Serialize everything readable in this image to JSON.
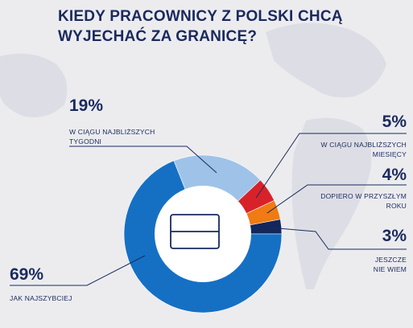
{
  "chart_data": {
    "type": "pie",
    "donut": true,
    "title_lines": [
      "KIEDY PRACOWNICY Z POLSKI CHCĄ",
      "WYJECHAĆ ZA GRANICĘ?"
    ],
    "slices": [
      {
        "value": 69,
        "label_pct": "69%",
        "label_lines": [
          "JAK NAJSZYBCIEJ"
        ],
        "color": "#1570c4",
        "key": "jak-najszybciej"
      },
      {
        "value": 19,
        "label_pct": "19%",
        "label_lines": [
          "W CIĄGU NAJBLIŻSZYCH",
          "TYGODNI"
        ],
        "color": "#9fc3e8",
        "key": "tygodni"
      },
      {
        "value": 5,
        "label_pct": "5%",
        "label_lines": [
          "W CIĄGU NAJBLIŻSZYCH",
          "MIESIĘCY"
        ],
        "color": "#d8222a",
        "key": "miesiecy"
      },
      {
        "value": 4,
        "label_pct": "4%",
        "label_lines": [
          "DOPIERO W PRZYSZŁYM",
          "ROKU"
        ],
        "color": "#f07a14",
        "key": "przyszlym-roku"
      },
      {
        "value": 3,
        "label_pct": "3%",
        "label_lines": [
          "JESZCZE",
          "NIE WIEM"
        ],
        "color": "#13275a",
        "key": "nie-wiem"
      }
    ],
    "legend": "none",
    "center_icon": "wallet-card-icon"
  },
  "colors": {
    "background": "#ececef",
    "text": "#1a2a5e",
    "leader_line": "#1a2a5e"
  }
}
